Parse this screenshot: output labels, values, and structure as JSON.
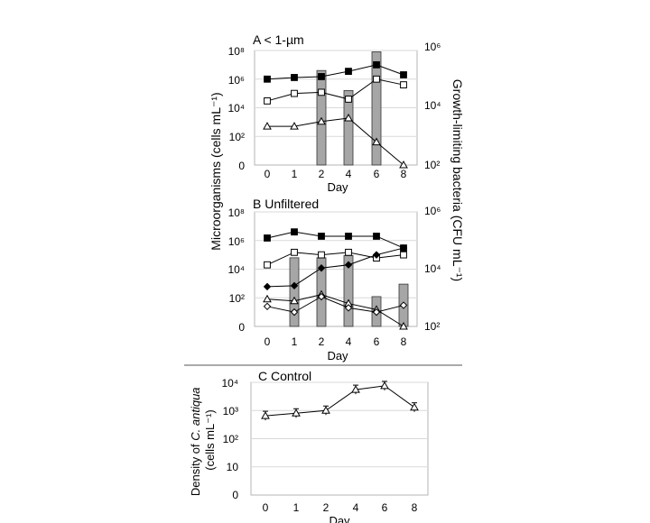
{
  "figure": {
    "shared_ylabel_left": "Microorganisms (cells mL⁻¹)",
    "shared_ylabel_right": "Growth-limiting bacteria (CFU mL⁻¹)"
  },
  "chart_data": [
    {
      "type": "line",
      "panel": "A",
      "title": "A  < 1-µm",
      "xlabel": "Day",
      "x_ticks": [
        "0",
        "1",
        "2",
        "4",
        "6",
        "8"
      ],
      "y_ticks_left": [
        "0",
        "10²",
        "10⁴",
        "10⁶",
        "10⁸"
      ],
      "y_ticks_right": [
        "10²",
        "10⁴",
        "10⁶"
      ],
      "y_scale": "log",
      "grid": "horizontal",
      "bars": {
        "axis": "right",
        "values": [
          null,
          null,
          200000,
          40000,
          900000,
          null
        ],
        "color": "#a6a6a6"
      },
      "series": [
        {
          "marker": "filled-square",
          "values": [
            1000000,
            1300000,
            1500000,
            3500000,
            10000000,
            2000000
          ]
        },
        {
          "marker": "open-square",
          "values": [
            30000,
            100000,
            120000,
            40000,
            1000000,
            400000
          ]
        },
        {
          "marker": "open-triangle",
          "values": [
            500,
            500,
            1100,
            1900,
            40,
            1
          ]
        }
      ]
    },
    {
      "type": "line",
      "panel": "B",
      "title": "B  Unfiltered",
      "xlabel": "Day",
      "x_ticks": [
        "0",
        "1",
        "2",
        "4",
        "6",
        "8"
      ],
      "y_ticks_left": [
        "0",
        "10²",
        "10⁴",
        "10⁶",
        "10⁸"
      ],
      "y_ticks_right": [
        "10²",
        "10⁴",
        "10⁶"
      ],
      "y_scale": "log",
      "grid": "horizontal",
      "bars": {
        "axis": "right",
        "values": [
          null,
          25000,
          25000,
          30000,
          1100,
          3000
        ],
        "color": "#a6a6a6"
      },
      "series": [
        {
          "marker": "filled-square",
          "values": [
            1500000,
            4000000,
            2000000,
            2000000,
            2000000,
            300000
          ]
        },
        {
          "marker": "open-square",
          "values": [
            20000,
            150000,
            100000,
            150000,
            60000,
            100000
          ]
        },
        {
          "marker": "filled-diamond",
          "values": [
            600,
            700,
            12000,
            20000,
            100000,
            300000
          ]
        },
        {
          "marker": "open-triangle",
          "values": [
            80,
            60,
            170,
            40,
            15,
            1
          ]
        },
        {
          "marker": "open-diamond",
          "values": [
            25,
            10,
            120,
            20,
            10,
            30
          ]
        }
      ]
    },
    {
      "type": "line",
      "panel": "C",
      "title": "C Control",
      "xlabel": "Day",
      "ylabel": "Density of C. antiqua (cells mL⁻¹)",
      "ylabel_italic_part": "C. antiqua",
      "x_ticks": [
        "0",
        "1",
        "2",
        "4",
        "6",
        "8"
      ],
      "y_ticks_left": [
        "0",
        "10",
        "10²",
        "10³",
        "10⁴"
      ],
      "y_scale": "log",
      "grid": "horizontal",
      "series": [
        {
          "marker": "open-triangle",
          "values": [
            650,
            800,
            1000,
            5500,
            7500,
            1300
          ],
          "error_bars": true
        }
      ]
    }
  ]
}
